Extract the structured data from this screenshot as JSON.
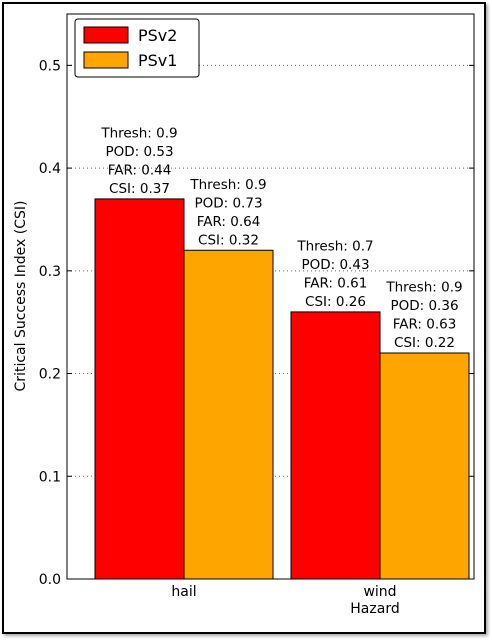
{
  "chart_data": {
    "type": "bar",
    "xlabel": "Hazard",
    "ylabel": "Critical Success Index (CSI)",
    "categories": [
      "hail",
      "wind"
    ],
    "ylim": [
      0.0,
      0.55
    ],
    "yticks": [
      "0.0",
      "0.1",
      "0.2",
      "0.3",
      "0.4",
      "0.5"
    ],
    "grid": "dotted-horizontal",
    "legend_position": "top-left",
    "series": [
      {
        "name": "PSv2",
        "color": "#ff0000",
        "values": [
          0.37,
          0.26
        ],
        "annotations": [
          [
            "Thresh: 0.9",
            "POD: 0.53",
            "FAR: 0.44",
            "CSI: 0.37"
          ],
          [
            "Thresh: 0.7",
            "POD: 0.43",
            "FAR: 0.61",
            "CSI: 0.26"
          ]
        ]
      },
      {
        "name": "PSv1",
        "color": "#ffa500",
        "values": [
          0.32,
          0.22
        ],
        "annotations": [
          [
            "Thresh: 0.9",
            "POD: 0.73",
            "FAR: 0.64",
            "CSI: 0.32"
          ],
          [
            "Thresh: 0.9",
            "POD: 0.36",
            "FAR: 0.63",
            "CSI: 0.22"
          ]
        ]
      }
    ]
  }
}
